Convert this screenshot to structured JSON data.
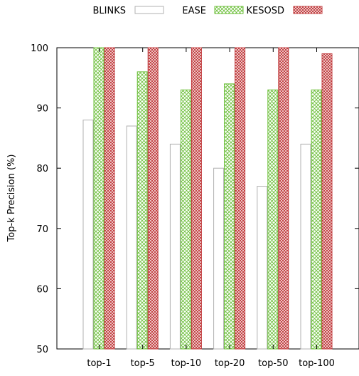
{
  "chart_data": {
    "type": "bar",
    "title": "",
    "xlabel": "",
    "ylabel": "Top-k Precision (%)",
    "ylim": [
      50,
      100
    ],
    "yticks": [
      50,
      60,
      70,
      80,
      90,
      100
    ],
    "grid": false,
    "legend_position": "top",
    "categories": [
      "top-1",
      "top-5",
      "top-10",
      "top-20",
      "top-50",
      "top-100"
    ],
    "series": [
      {
        "name": "BLINKS",
        "values": [
          88,
          87,
          84,
          80,
          77,
          84
        ],
        "color": "#b0b0b0",
        "fill": "white"
      },
      {
        "name": "EASE",
        "values": [
          100,
          96,
          93,
          94,
          93,
          93
        ],
        "color": "#6cbf3a",
        "fill": "crosshatch"
      },
      {
        "name": "KESOSD",
        "values": [
          100,
          100,
          100,
          100,
          100,
          99
        ],
        "color": "#c0393b",
        "fill": "crosshatch"
      }
    ]
  }
}
